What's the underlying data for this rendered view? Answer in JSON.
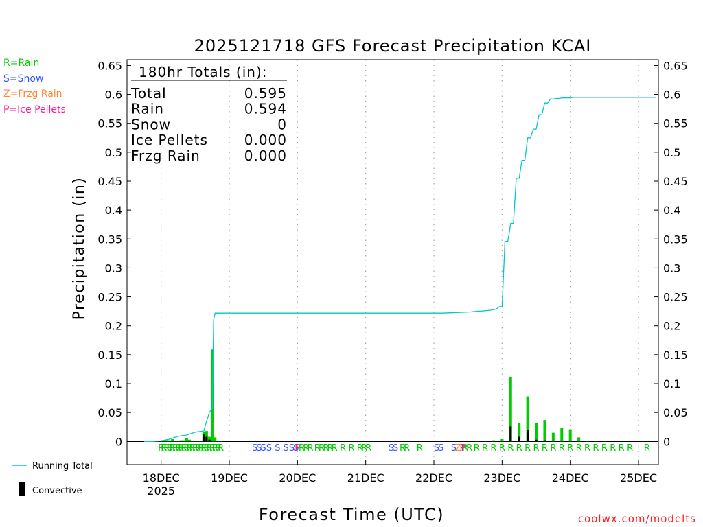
{
  "chart_data": {
    "type": "bar",
    "title": "2025121718 GFS Forecast Precipitation KCAI",
    "xlabel": "Forecast Time (UTC)",
    "ylabel": "Precipitation (in)",
    "ylim": [
      -0.04,
      0.66
    ],
    "xlim_hours": [
      -6,
      181
    ],
    "y_ticks": [
      0,
      0.05,
      0.1,
      0.15,
      0.2,
      0.25,
      0.3,
      0.35,
      0.4,
      0.45,
      0.5,
      0.55,
      0.6,
      0.65
    ],
    "y_tick_labels": [
      "0",
      "0.05",
      "0.1",
      "0.15",
      "0.2",
      "0.25",
      "0.3",
      "0.35",
      "0.4",
      "0.45",
      "0.5",
      "0.55",
      "0.6",
      "0.65"
    ],
    "x_ticks": [
      {
        "hour": 6,
        "label": "18DEC",
        "sub": "2025"
      },
      {
        "hour": 30,
        "label": "19DEC"
      },
      {
        "hour": 54,
        "label": "20DEC"
      },
      {
        "hour": 78,
        "label": "21DEC"
      },
      {
        "hour": 102,
        "label": "22DEC"
      },
      {
        "hour": 126,
        "label": "23DEC"
      },
      {
        "hour": 150,
        "label": "24DEC"
      },
      {
        "hour": 174,
        "label": "25DEC"
      }
    ],
    "grid_vertical": "dotted",
    "legend": {
      "types": [
        "R=Rain",
        "S=Snow",
        "Z=Frzg Rain",
        "P=Ice Pellets"
      ],
      "running_total": "Running Total",
      "convective": "Convective"
    },
    "totals_box": {
      "header": "180hr Totals (in):",
      "rows": [
        {
          "label": "Total",
          "value": "0.595"
        },
        {
          "label": "Rain",
          "value": "0.594"
        },
        {
          "label": "Snow",
          "value": "0"
        },
        {
          "label": "Ice Pellets",
          "value": "0.000"
        },
        {
          "label": "Frzg Rain",
          "value": "0.000"
        }
      ]
    },
    "series": [
      {
        "name": "Running Total",
        "color": "#00c8c8",
        "hours": [
          0,
          3,
          6,
          9,
          12,
          15,
          18,
          21,
          22,
          23,
          24,
          24.5,
          25,
          26,
          27,
          28,
          30,
          50,
          70,
          90,
          105,
          110,
          115,
          117,
          120,
          122,
          123,
          124,
          124.5,
          125,
          125.5,
          126,
          127,
          128,
          128.5,
          129,
          130,
          131,
          132,
          133,
          134,
          135,
          136,
          137,
          138,
          139,
          140,
          141,
          142,
          143,
          144,
          145,
          146,
          147,
          148,
          149,
          150,
          151,
          152,
          153,
          154,
          155,
          156,
          157,
          158,
          159,
          160,
          161,
          162,
          163,
          165,
          168,
          171,
          174,
          177,
          180
        ],
        "values": [
          0,
          0,
          0.001,
          0.004,
          0.009,
          0.011,
          0.016,
          0.018,
          0.035,
          0.05,
          0.057,
          0.21,
          0.222,
          0.222,
          0.222,
          0.222,
          0.222,
          0.222,
          0.222,
          0.222,
          0.222,
          0.223,
          0.224,
          0.225,
          0.226,
          0.227,
          0.228,
          0.229,
          0.231,
          0.233,
          0.233,
          0.233,
          0.346,
          0.346,
          0.36,
          0.377,
          0.377,
          0.455,
          0.455,
          0.486,
          0.486,
          0.525,
          0.525,
          0.54,
          0.54,
          0.565,
          0.565,
          0.585,
          0.585,
          0.592,
          0.592,
          0.593,
          0.593,
          0.594,
          0.594,
          0.594,
          0.594,
          0.595,
          0.595,
          0.595,
          0.595,
          0.595,
          0.595,
          0.595,
          0.595,
          0.595,
          0.595,
          0.595,
          0.595,
          0.595,
          0.595,
          0.595,
          0.595,
          0.595,
          0.595,
          0.595
        ]
      },
      {
        "name": "Precipitation",
        "color": "#00cc00",
        "hours": [
          6,
          7,
          8,
          9,
          10,
          11,
          12,
          13,
          14,
          15,
          16,
          17,
          18,
          19,
          20,
          21,
          22,
          23,
          24,
          25,
          26,
          27,
          117,
          120,
          123,
          126,
          129,
          132,
          135,
          138,
          141,
          144,
          147,
          150,
          153,
          156,
          159,
          162
        ],
        "values": [
          0.001,
          0.001,
          0.002,
          0.002,
          0.004,
          0.001,
          0.001,
          0.002,
          0.002,
          0.006,
          0.003,
          0.001,
          0.001,
          0.001,
          0.001,
          0.016,
          0.018,
          0.008,
          0.159,
          0.007,
          0.001,
          0.001,
          0.001,
          0.001,
          0.002,
          0.004,
          0.112,
          0.032,
          0.078,
          0.032,
          0.037,
          0.015,
          0.024,
          0.021,
          0.007,
          0.001,
          0.001,
          0.001
        ]
      },
      {
        "name": "Convective",
        "color": "#000000",
        "hours": [
          21,
          22,
          23,
          129,
          132,
          135,
          138,
          141
        ],
        "values": [
          0.012,
          0.008,
          0.003,
          0.026,
          0.008,
          0.02,
          0.003,
          0.002
        ]
      }
    ],
    "ptype_markers": [
      {
        "hour": 6,
        "t": "R"
      },
      {
        "hour": 7,
        "t": "R"
      },
      {
        "hour": 8,
        "t": "R"
      },
      {
        "hour": 9,
        "t": "R"
      },
      {
        "hour": 10,
        "t": "R"
      },
      {
        "hour": 11,
        "t": "R"
      },
      {
        "hour": 12,
        "t": "R"
      },
      {
        "hour": 13,
        "t": "R"
      },
      {
        "hour": 14,
        "t": "R"
      },
      {
        "hour": 15,
        "t": "R"
      },
      {
        "hour": 16,
        "t": "R"
      },
      {
        "hour": 17,
        "t": "R"
      },
      {
        "hour": 18,
        "t": "R"
      },
      {
        "hour": 19,
        "t": "R"
      },
      {
        "hour": 20,
        "t": "R"
      },
      {
        "hour": 21,
        "t": "R"
      },
      {
        "hour": 22,
        "t": "R"
      },
      {
        "hour": 23,
        "t": "R"
      },
      {
        "hour": 24,
        "t": "R"
      },
      {
        "hour": 25,
        "t": "R"
      },
      {
        "hour": 26,
        "t": "R"
      },
      {
        "hour": 27,
        "t": "R"
      },
      {
        "hour": 39,
        "t": "S"
      },
      {
        "hour": 40.5,
        "t": "S"
      },
      {
        "hour": 42,
        "t": "S"
      },
      {
        "hour": 44,
        "t": "S"
      },
      {
        "hour": 47,
        "t": "S"
      },
      {
        "hour": 50,
        "t": "S"
      },
      {
        "hour": 52,
        "t": "S"
      },
      {
        "hour": 53.5,
        "t": "S"
      },
      {
        "hour": 54,
        "t": "P"
      },
      {
        "hour": 55.5,
        "t": "R"
      },
      {
        "hour": 57,
        "t": "R"
      },
      {
        "hour": 58.5,
        "t": "R"
      },
      {
        "hour": 61,
        "t": "R"
      },
      {
        "hour": 62.5,
        "t": "R"
      },
      {
        "hour": 64,
        "t": "R"
      },
      {
        "hour": 65.5,
        "t": "R"
      },
      {
        "hour": 67,
        "t": "R"
      },
      {
        "hour": 70,
        "t": "R"
      },
      {
        "hour": 73,
        "t": "R"
      },
      {
        "hour": 76,
        "t": "R"
      },
      {
        "hour": 77.5,
        "t": "R"
      },
      {
        "hour": 79,
        "t": "R"
      },
      {
        "hour": 87,
        "t": "S"
      },
      {
        "hour": 88.5,
        "t": "S"
      },
      {
        "hour": 91,
        "t": "R"
      },
      {
        "hour": 92.5,
        "t": "R"
      },
      {
        "hour": 97,
        "t": "R"
      },
      {
        "hour": 103,
        "t": "S"
      },
      {
        "hour": 104.5,
        "t": "S"
      },
      {
        "hour": 109,
        "t": "S"
      },
      {
        "hour": 110.5,
        "t": "Z"
      },
      {
        "hour": 112,
        "t": "P"
      },
      {
        "hour": 112.5,
        "t": "P"
      },
      {
        "hour": 113,
        "t": "R"
      },
      {
        "hour": 114.5,
        "t": "R"
      },
      {
        "hour": 117,
        "t": "R"
      },
      {
        "hour": 120,
        "t": "R"
      },
      {
        "hour": 123,
        "t": "R"
      },
      {
        "hour": 126,
        "t": "R"
      },
      {
        "hour": 129,
        "t": "R"
      },
      {
        "hour": 132,
        "t": "R"
      },
      {
        "hour": 135,
        "t": "R"
      },
      {
        "hour": 138,
        "t": "R"
      },
      {
        "hour": 141,
        "t": "R"
      },
      {
        "hour": 144,
        "t": "R"
      },
      {
        "hour": 147,
        "t": "R"
      },
      {
        "hour": 150,
        "t": "R"
      },
      {
        "hour": 153,
        "t": "R"
      },
      {
        "hour": 156,
        "t": "R"
      },
      {
        "hour": 159,
        "t": "R"
      },
      {
        "hour": 162,
        "t": "R"
      },
      {
        "hour": 165,
        "t": "R"
      },
      {
        "hour": 168,
        "t": "R"
      },
      {
        "hour": 171,
        "t": "R"
      },
      {
        "hour": 177,
        "t": "R"
      }
    ],
    "ptype_colors": {
      "R": "#00cc00",
      "S": "#3355ff",
      "Z": "#ff8833",
      "P": "#ff1493"
    },
    "watermark": "coolwx.com/modelts"
  }
}
